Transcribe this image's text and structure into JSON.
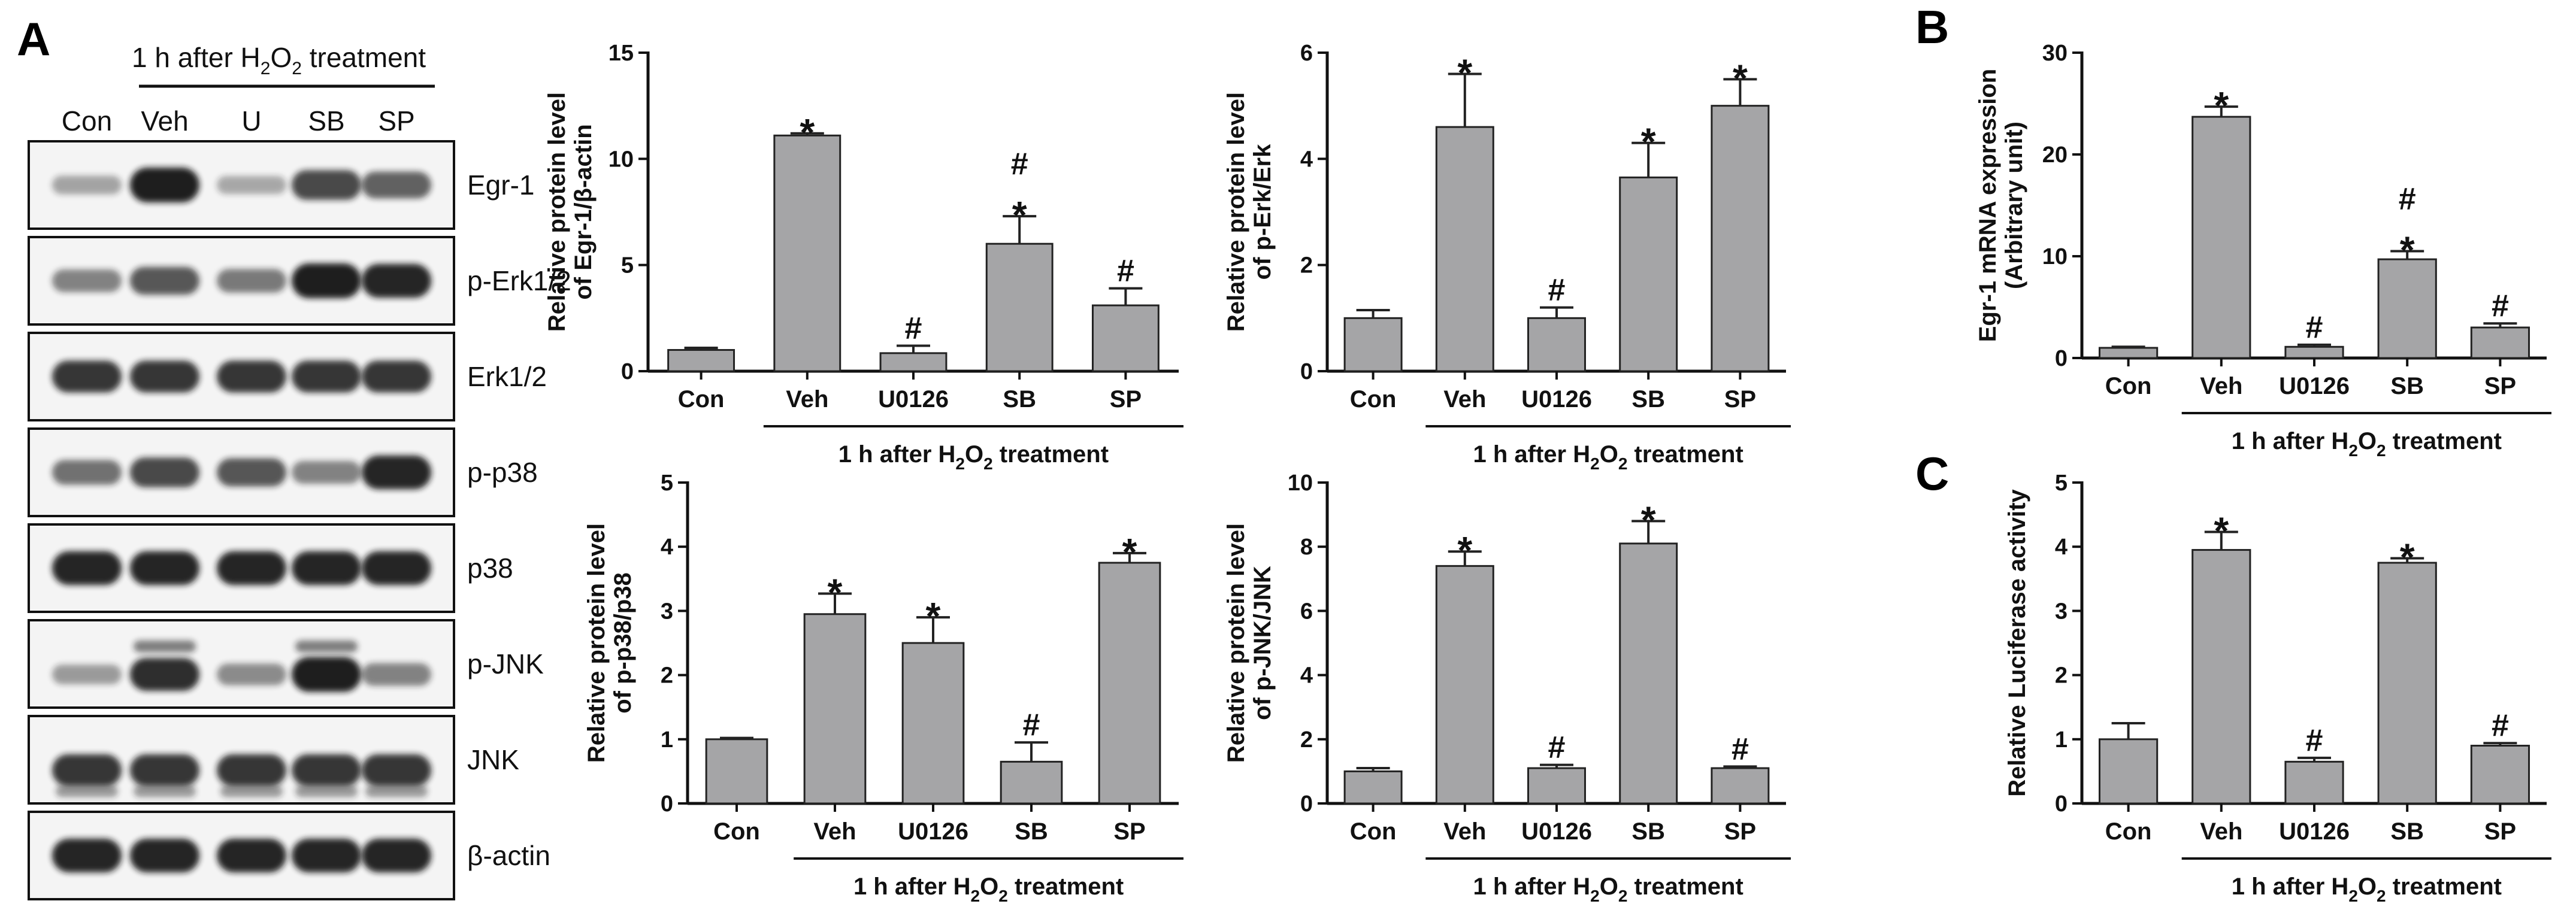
{
  "panels": {
    "A": "A",
    "B": "B",
    "C": "C"
  },
  "group_label": {
    "prefix": "1 h after H",
    "sub": "2",
    "mid": "O",
    "suffix": " treatment"
  },
  "western": {
    "header": {
      "prefix": "1 h after H",
      "sub": "2",
      "mid": "O",
      "suffix": " treatment"
    },
    "lanes": [
      "Con",
      "Veh",
      "U",
      "SB",
      "SP"
    ],
    "proteins": [
      "Egr-1",
      "p-Erk1/2",
      "Erk1/2",
      "p-p38",
      "p38",
      "p-JNK",
      "JNK",
      "β-actin"
    ],
    "intensity": [
      [
        0.15,
        0.95,
        0.12,
        0.7,
        0.55
      ],
      [
        0.35,
        0.6,
        0.4,
        0.95,
        0.9
      ],
      [
        0.8,
        0.8,
        0.8,
        0.8,
        0.8
      ],
      [
        0.45,
        0.7,
        0.62,
        0.35,
        0.9
      ],
      [
        0.9,
        0.9,
        0.9,
        0.9,
        0.9
      ],
      [
        0.2,
        0.85,
        0.3,
        0.95,
        0.35
      ],
      [
        0.8,
        0.8,
        0.8,
        0.8,
        0.8
      ],
      [
        0.9,
        0.9,
        0.9,
        0.9,
        0.9
      ]
    ]
  },
  "colors": {
    "bar": "#a5a5a7",
    "axis": "#111111",
    "band": "#141414",
    "blot_bg": "#f4f4f4"
  },
  "chart_data": [
    {
      "id": "egr1",
      "type": "bar",
      "categories": [
        "Con",
        "Veh",
        "U0126",
        "SB",
        "SP"
      ],
      "values": [
        1.0,
        11.1,
        0.85,
        6.0,
        3.1
      ],
      "errors": [
        0.1,
        0.1,
        0.35,
        1.3,
        0.8
      ],
      "significance": [
        "",
        "*",
        "#",
        "*#",
        "#"
      ],
      "ylabel": [
        "Relative protein level",
        "of Egr-1/β-actin"
      ],
      "ylim": [
        0,
        15
      ],
      "yticks": [
        0,
        5,
        10,
        15
      ],
      "xlabel": "1 h after H2O2 treatment"
    },
    {
      "id": "perk",
      "type": "bar",
      "categories": [
        "Con",
        "Veh",
        "U0126",
        "SB",
        "SP"
      ],
      "values": [
        1.0,
        4.6,
        1.0,
        3.65,
        5.0
      ],
      "errors": [
        0.15,
        1.0,
        0.2,
        0.65,
        0.5
      ],
      "significance": [
        "",
        "*",
        "#",
        "*",
        "*"
      ],
      "ylabel": [
        "Relative protein level",
        "of p-Erk/Erk"
      ],
      "ylim": [
        0,
        6
      ],
      "yticks": [
        0,
        2,
        4,
        6
      ],
      "xlabel": "1 h after H2O2 treatment"
    },
    {
      "id": "egr1mrna",
      "type": "bar",
      "categories": [
        "Con",
        "Veh",
        "U0126",
        "SB",
        "SP"
      ],
      "values": [
        1.0,
        23.7,
        1.1,
        9.7,
        3.0
      ],
      "errors": [
        0.1,
        1.0,
        0.2,
        0.8,
        0.4
      ],
      "significance": [
        "",
        "*",
        "#",
        "*#",
        "#"
      ],
      "ylabel": [
        "Egr-1 mRNA expression",
        "(Arbitrary unit)"
      ],
      "ylim": [
        0,
        30
      ],
      "yticks": [
        0,
        10,
        20,
        30
      ],
      "xlabel": "1 h after H2O2 treatment"
    },
    {
      "id": "pp38",
      "type": "bar",
      "categories": [
        "Con",
        "Veh",
        "U0126",
        "SB",
        "SP"
      ],
      "values": [
        1.0,
        2.95,
        2.5,
        0.65,
        3.75
      ],
      "errors": [
        0.02,
        0.32,
        0.4,
        0.3,
        0.15
      ],
      "significance": [
        "",
        "*",
        "*",
        "#",
        "*"
      ],
      "ylabel": [
        "Relative protein level",
        "of p-p38/p38"
      ],
      "ylim": [
        0,
        5
      ],
      "yticks": [
        0,
        1,
        2,
        3,
        4,
        5
      ],
      "xlabel": "1 h after H2O2 treatment"
    },
    {
      "id": "pjnk",
      "type": "bar",
      "categories": [
        "Con",
        "Veh",
        "U0126",
        "SB",
        "SP"
      ],
      "values": [
        1.0,
        7.4,
        1.1,
        8.1,
        1.1
      ],
      "errors": [
        0.1,
        0.45,
        0.1,
        0.7,
        0.05
      ],
      "significance": [
        "",
        "*",
        "#",
        "*",
        "#"
      ],
      "ylabel": [
        "Relative protein level",
        "of p-JNK/JNK"
      ],
      "ylim": [
        0,
        10
      ],
      "yticks": [
        0,
        2,
        4,
        6,
        8,
        10
      ],
      "xlabel": "1 h after H2O2 treatment"
    },
    {
      "id": "luciferase",
      "type": "bar",
      "categories": [
        "Con",
        "Veh",
        "U0126",
        "SB",
        "SP"
      ],
      "values": [
        1.0,
        3.95,
        0.65,
        3.75,
        0.9
      ],
      "errors": [
        0.25,
        0.28,
        0.06,
        0.07,
        0.04
      ],
      "significance": [
        "",
        "*",
        "#",
        "*",
        "#"
      ],
      "ylabel": [
        "Relative Luciferase activity"
      ],
      "ylim": [
        0,
        5
      ],
      "yticks": [
        0,
        1,
        2,
        3,
        4,
        5
      ],
      "xlabel": "1 h after H2O2 treatment"
    }
  ]
}
